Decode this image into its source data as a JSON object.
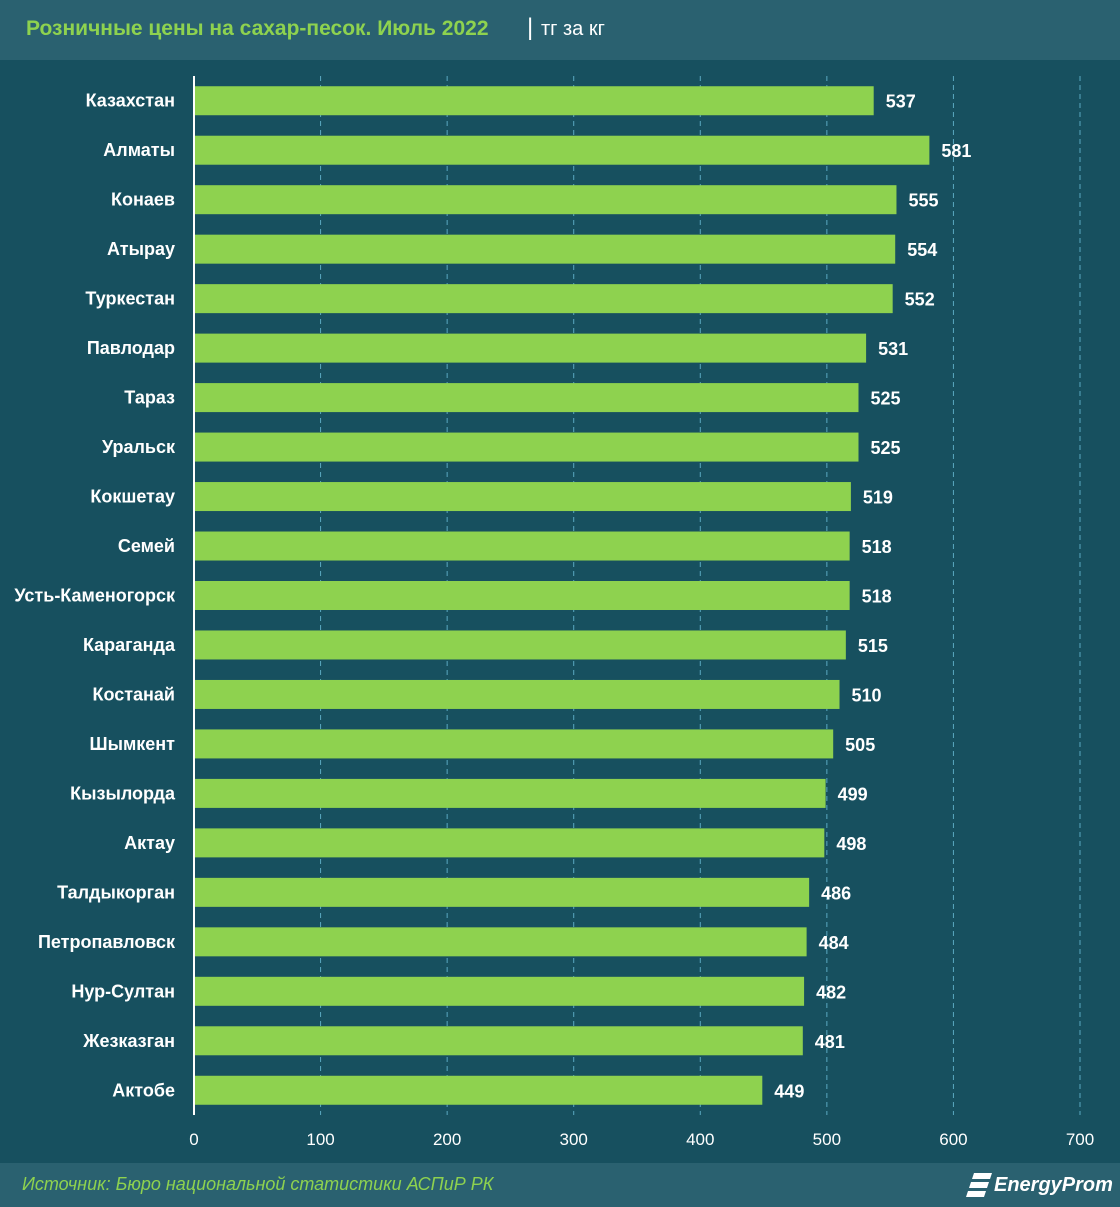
{
  "header": {
    "title": "Розничные цены на сахар-песок. Июль 2022",
    "separator": "|",
    "unit": "тг за кг"
  },
  "footer": {
    "source": "Источник: Бюро национальной статистики АСПиР РК",
    "logo_text": "EnergyProm"
  },
  "colors": {
    "background": "#17505f",
    "header_bg": "#2a6170",
    "bar": "#8ed24f",
    "title": "#8ed24f",
    "text": "#ffffff",
    "grid": "#5aa8c0"
  },
  "chart_data": {
    "type": "bar",
    "orientation": "horizontal",
    "title": "Розничные цены на сахар-песок. Июль 2022",
    "xlabel": "",
    "ylabel": "",
    "unit": "тг за кг",
    "xlim": [
      0,
      700
    ],
    "ticks": [
      0,
      100,
      200,
      300,
      400,
      500,
      600,
      700
    ],
    "grid": "vertical dashed",
    "categories": [
      "Казахстан",
      "Алматы",
      "Конаев",
      "Атырау",
      "Туркестан",
      "Павлодар",
      "Тараз",
      "Уральск",
      "Кокшетау",
      "Семей",
      "Усть-Каменогорск",
      "Караганда",
      "Костанай",
      "Шымкент",
      "Кызылорда",
      "Актау",
      "Талдыкорган",
      "Петропавловск",
      "Нур-Султан",
      "Жезказган",
      "Актобе"
    ],
    "values": [
      537,
      581,
      555,
      554,
      552,
      531,
      525,
      525,
      519,
      518,
      518,
      515,
      510,
      505,
      499,
      498,
      486,
      484,
      482,
      481,
      449
    ]
  }
}
